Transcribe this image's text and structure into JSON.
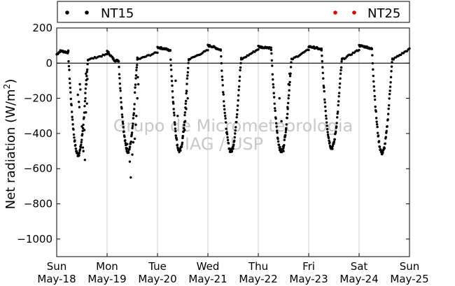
{
  "chart_data": {
    "type": "scatter",
    "ylabel": "Net radiation (W/m",
    "ylabel_sup": "2",
    "ylabel_tail": ")",
    "ylim": [
      -1100,
      200
    ],
    "yticks": [
      200,
      0,
      -200,
      -400,
      -600,
      -800,
      -1000
    ],
    "ytick_labels": [
      "200",
      "0",
      "−200",
      "−400",
      "−600",
      "−800",
      "−1000"
    ],
    "xlim": [
      0,
      7
    ],
    "xticks": [
      {
        "x": 0,
        "day": "Sun",
        "date": "May-18"
      },
      {
        "x": 1,
        "day": "Mon",
        "date": "May-19"
      },
      {
        "x": 2,
        "day": "Tue",
        "date": "May-20"
      },
      {
        "x": 3,
        "day": "Wed",
        "date": "May-21"
      },
      {
        "x": 4,
        "day": "Thu",
        "date": "May-22"
      },
      {
        "x": 5,
        "day": "Fri",
        "date": "May-23"
      },
      {
        "x": 6,
        "day": "Sat",
        "date": "May-24"
      },
      {
        "x": 7,
        "day": "Sun",
        "date": "May-25"
      }
    ],
    "grid": "vertical",
    "zero_line": true,
    "legend": {
      "placement": "top",
      "entries": [
        {
          "name": "NT15",
          "color": "#000000"
        },
        {
          "name": "NT25",
          "color": "#dd0000"
        }
      ]
    },
    "watermark": [
      "Grupo de Micrometeorologia",
      "IAG / USP"
    ],
    "series": [
      {
        "name": "NT15",
        "color": "#000000",
        "days": [
          {
            "night": [
              50,
              70,
              65,
              60
            ],
            "min": -520,
            "rise": 0.27,
            "end": 0.62,
            "scatter": [
              [
                0.42,
                -180
              ],
              [
                0.44,
                -220
              ],
              [
                0.46,
                -120
              ],
              [
                0.47,
                -150
              ],
              [
                0.45,
                -250
              ],
              [
                0.5,
                -360
              ],
              [
                0.52,
                -480
              ],
              [
                0.55,
                -380
              ],
              [
                0.58,
                -280
              ],
              [
                0.6,
                -230
              ],
              [
                0.56,
                -550
              ],
              [
                0.53,
                -500
              ],
              [
                0.57,
                -200
              ],
              [
                0.59,
                -120
              ],
              [
                0.61,
                -90
              ],
              [
                0.58,
                -60
              ]
            ]
          },
          {
            "night": [
              70,
              40,
              15,
              15
            ],
            "min": -500,
            "rise": 0.27,
            "end": 0.6,
            "scatter": [
              [
                0.4,
                -460
              ],
              [
                0.45,
                -560
              ],
              [
                0.47,
                -650
              ],
              [
                0.5,
                -520
              ],
              [
                0.52,
                -450
              ],
              [
                0.55,
                -430
              ],
              [
                0.57,
                -350
              ],
              [
                0.6,
                -200
              ],
              [
                0.61,
                -80
              ],
              [
                0.58,
                -300
              ],
              [
                0.62,
                -120
              ]
            ]
          },
          {
            "night": [
              90,
              85,
              80,
              70
            ],
            "min": -500,
            "rise": 0.3,
            "end": 0.62,
            "scatter": [
              [
                0.36,
                -100
              ],
              [
                0.4,
                -300
              ],
              [
                0.45,
                -490
              ],
              [
                0.5,
                -420
              ],
              [
                0.55,
                -330
              ],
              [
                0.57,
                -260
              ],
              [
                0.58,
                -160
              ],
              [
                0.54,
                -380
              ],
              [
                0.6,
                -200
              ]
            ]
          },
          {
            "night": [
              100,
              95,
              85,
              75
            ],
            "min": -500,
            "rise": 0.3,
            "end": 0.66,
            "scatter": []
          },
          {
            "night": [
              95,
              90,
              90,
              85
            ],
            "min": -500,
            "rise": 0.3,
            "end": 0.66,
            "scatter": [
              [
                0.42,
                -200
              ],
              [
                0.46,
                -330
              ],
              [
                0.5,
                -500
              ],
              [
                0.53,
                -420
              ],
              [
                0.55,
                -380
              ],
              [
                0.58,
                -250
              ],
              [
                0.6,
                -120
              ],
              [
                0.62,
                -60
              ]
            ]
          },
          {
            "night": [
              95,
              90,
              85,
              75
            ],
            "min": -480,
            "rise": 0.3,
            "end": 0.66,
            "scatter": []
          },
          {
            "night": [
              100,
              95,
              90,
              80
            ],
            "min": -510,
            "rise": 0.3,
            "end": 0.66,
            "scatter": []
          }
        ]
      },
      {
        "name": "NT25",
        "color": "#dd0000",
        "days": []
      }
    ]
  }
}
